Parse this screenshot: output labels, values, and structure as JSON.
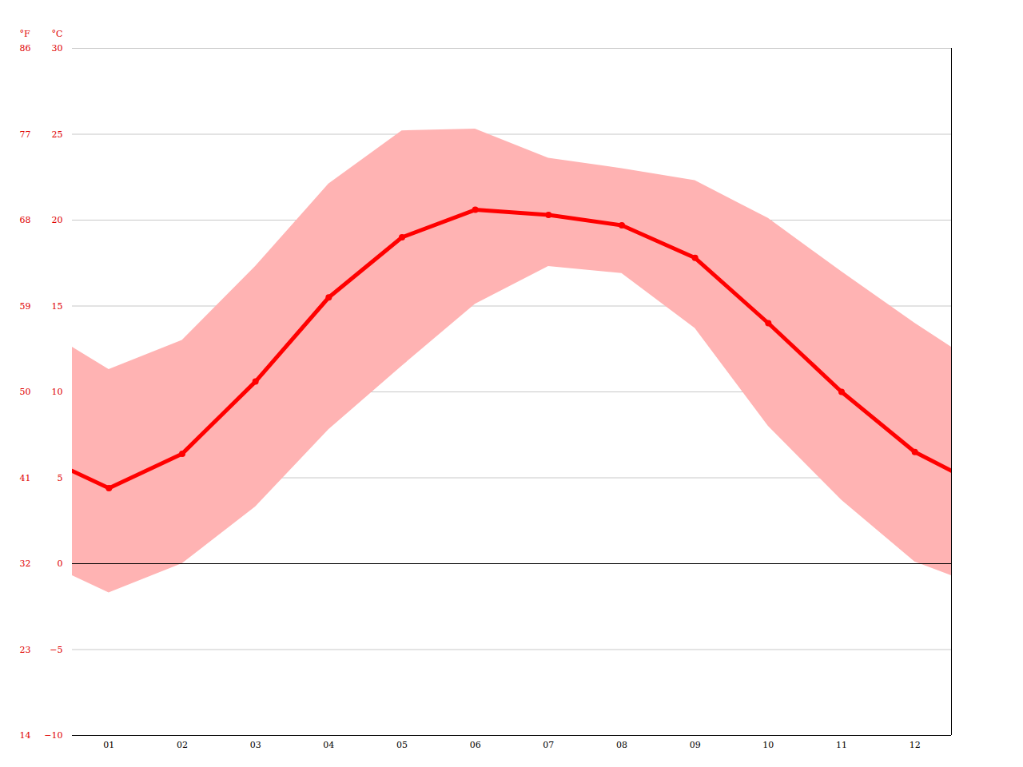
{
  "chart_data": {
    "type": "line",
    "y_label": "°C",
    "y2_label": "°F",
    "x": [
      0.5,
      1,
      2,
      3,
      4,
      5,
      6,
      7,
      8,
      9,
      10,
      11,
      12,
      12.5
    ],
    "series": [
      {
        "type": "area",
        "color": "#ffb3b3",
        "low": [
          -0.7,
          -1.7,
          0.0,
          3.3,
          7.8,
          11.5,
          15.1,
          17.3,
          16.9,
          13.7,
          8.0,
          3.7,
          0.1,
          -0.7
        ],
        "high": [
          12.6,
          11.3,
          13.0,
          17.3,
          22.1,
          25.2,
          25.3,
          23.6,
          23.0,
          22.3,
          20.1,
          17.0,
          14.0,
          12.6
        ]
      },
      {
        "type": "line",
        "color": "#ff0000",
        "marker": "circle",
        "values": [
          5.4,
          4.4,
          6.4,
          10.6,
          15.5,
          19.0,
          20.6,
          20.3,
          19.7,
          17.8,
          14.0,
          10.0,
          6.5,
          5.4
        ]
      }
    ],
    "xlim": [
      0.5,
      12.5
    ],
    "xticks": [
      {
        "value": 1,
        "label": "01"
      },
      {
        "value": 2,
        "label": "02"
      },
      {
        "value": 3,
        "label": "03"
      },
      {
        "value": 4,
        "label": "04"
      },
      {
        "value": 5,
        "label": "05"
      },
      {
        "value": 6,
        "label": "06"
      },
      {
        "value": 7,
        "label": "07"
      },
      {
        "value": 8,
        "label": "08"
      },
      {
        "value": 9,
        "label": "09"
      },
      {
        "value": 10,
        "label": "10"
      },
      {
        "value": 11,
        "label": "11"
      },
      {
        "value": 12,
        "label": "12"
      }
    ],
    "ylim": [
      -10,
      30
    ],
    "yticks": [
      -10,
      -5,
      0,
      5,
      10,
      15,
      20,
      25,
      30
    ],
    "y2lim": [
      14,
      86
    ],
    "y2ticks": [
      14,
      23,
      32,
      41,
      50,
      59,
      68,
      77,
      86
    ],
    "grid": true
  }
}
